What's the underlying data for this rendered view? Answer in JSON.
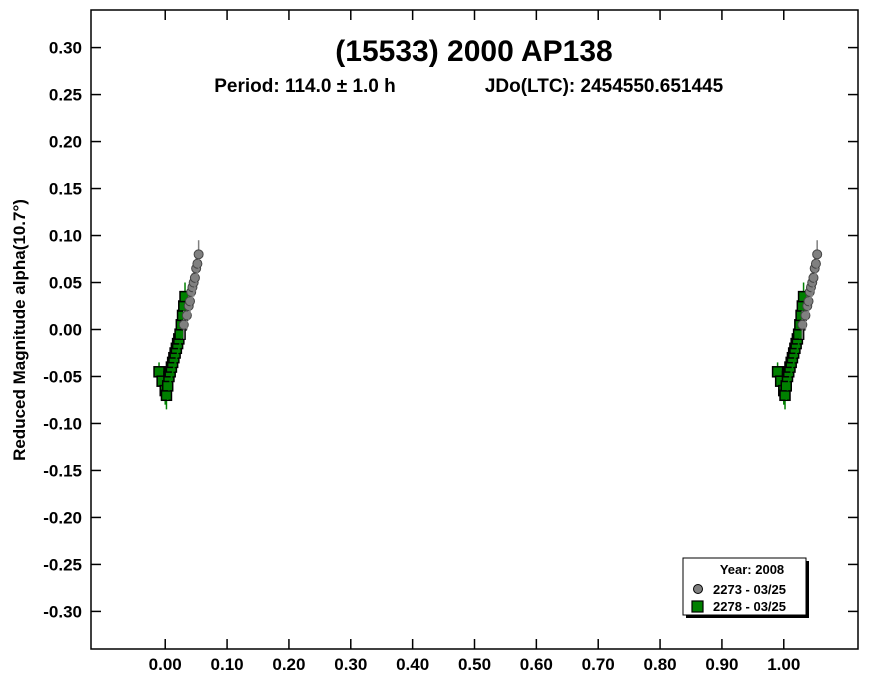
{
  "chart_data": {
    "type": "scatter",
    "title": "(15533) 2000 AP138",
    "subtitle_period": "Period: 114.0 ± 1.0 h",
    "subtitle_epoch": "JDo(LTC): 2454550.651445",
    "xlabel": "",
    "ylabel": "Reduced Magnitude alpha(10.7°)",
    "xlim": [
      -0.12,
      1.12
    ],
    "ylim": [
      0.34,
      -0.34
    ],
    "y_inverted": true,
    "x_ticks": [
      0.0,
      0.1,
      0.2,
      0.3,
      0.4,
      0.5,
      0.6,
      0.7,
      0.8,
      0.9,
      1.0
    ],
    "x_tick_labels": [
      "0.00",
      "0.10",
      "0.20",
      "0.30",
      "0.40",
      "0.50",
      "0.60",
      "0.70",
      "0.80",
      "0.90",
      "1.00"
    ],
    "y_ticks": [
      -0.3,
      -0.25,
      -0.2,
      -0.15,
      -0.1,
      -0.05,
      0.0,
      0.05,
      0.1,
      0.15,
      0.2,
      0.25,
      0.3
    ],
    "y_tick_labels": [
      "-0.30",
      "-0.25",
      "-0.20",
      "-0.15",
      "-0.10",
      "-0.05",
      "0.00",
      "0.05",
      "0.10",
      "0.15",
      "0.20",
      "0.25",
      "0.30"
    ],
    "grid": false,
    "legend": {
      "title": "Year: 2008",
      "placement": "bottom-right",
      "entries": [
        {
          "label": "2273 - 03/25",
          "marker": "circle",
          "color": "#808080"
        },
        {
          "label": "2278 - 03/25",
          "marker": "square",
          "color": "#008000"
        }
      ]
    },
    "series": [
      {
        "name": "2273 - 03/25",
        "marker": "circle",
        "color": "#808080",
        "x": [
          0.03,
          0.035,
          0.038,
          0.04,
          0.042,
          0.044,
          0.046,
          0.048,
          0.05,
          0.052,
          0.054
        ],
        "y": [
          0.005,
          0.015,
          0.025,
          0.03,
          0.04,
          0.045,
          0.05,
          0.055,
          0.065,
          0.07,
          0.08
        ],
        "err": [
          0.015,
          0.015,
          0.015,
          0.015,
          0.015,
          0.015,
          0.015,
          0.015,
          0.015,
          0.015,
          0.015
        ]
      },
      {
        "name": "2278 - 03/25",
        "marker": "square",
        "color": "#008000",
        "x": [
          -0.01,
          -0.005,
          0.0,
          0.002,
          0.004,
          0.006,
          0.008,
          0.01,
          0.012,
          0.014,
          0.016,
          0.018,
          0.02,
          0.022,
          0.024,
          0.026,
          0.028,
          0.03,
          0.032
        ],
        "y": [
          -0.045,
          -0.055,
          -0.065,
          -0.07,
          -0.06,
          -0.05,
          -0.045,
          -0.04,
          -0.035,
          -0.03,
          -0.025,
          -0.02,
          -0.015,
          -0.01,
          -0.005,
          0.005,
          0.015,
          0.025,
          0.035
        ],
        "err": [
          0.01,
          0.012,
          0.015,
          0.015,
          0.015,
          0.015,
          0.015,
          0.015,
          0.015,
          0.015,
          0.015,
          0.015,
          0.015,
          0.015,
          0.015,
          0.015,
          0.015,
          0.015,
          0.015
        ]
      }
    ]
  },
  "colors": {
    "frame": "#000000",
    "green_fill": "#008000",
    "gray_fill": "#808080",
    "background": "#ffffff"
  }
}
